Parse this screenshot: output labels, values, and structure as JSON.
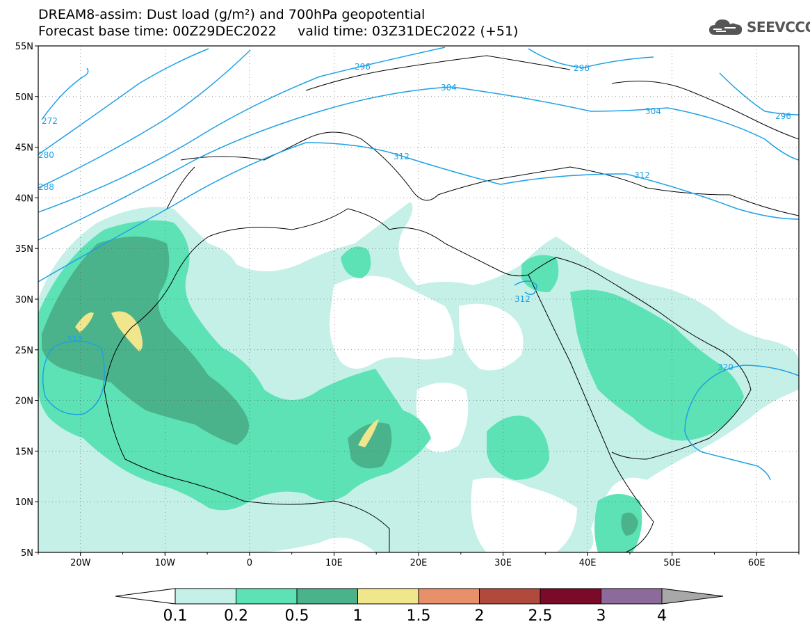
{
  "header": {
    "title_line1": "DREAM8-assim: Dust load (g/m²) and 700hPa geopotential",
    "title_line2": "Forecast base time: 00Z29DEC2022     valid time: 03Z31DEC2022 (+51)",
    "logo_text": "SEEVCCC"
  },
  "map": {
    "lon_range": [
      -25,
      65
    ],
    "lat_range": [
      5,
      55
    ],
    "lat_ticks": [
      "55N",
      "50N",
      "45N",
      "40N",
      "35N",
      "30N",
      "25N",
      "20N",
      "15N",
      "10N",
      "5N"
    ],
    "lon_ticks": [
      "20W",
      "10W",
      "0",
      "10E",
      "20E",
      "30E",
      "40E",
      "50E",
      "60E"
    ],
    "contour_labels": [
      "272",
      "280",
      "288",
      "296",
      "296",
      "304",
      "304",
      "312",
      "312",
      "312",
      "312",
      "320",
      "296"
    ],
    "contour_color": "#1ea0e6"
  },
  "colorbar": {
    "labels": [
      "0.1",
      "0.2",
      "0.5",
      "1",
      "1.5",
      "2",
      "2.5",
      "3",
      "4"
    ],
    "colors": [
      "#ffffff",
      "#c4f0e8",
      "#5ce2b4",
      "#4bb38c",
      "#f0e68c",
      "#e8906a",
      "#b04a3c",
      "#7a0a28",
      "#8c6a9c",
      "#a8a8a8"
    ]
  }
}
